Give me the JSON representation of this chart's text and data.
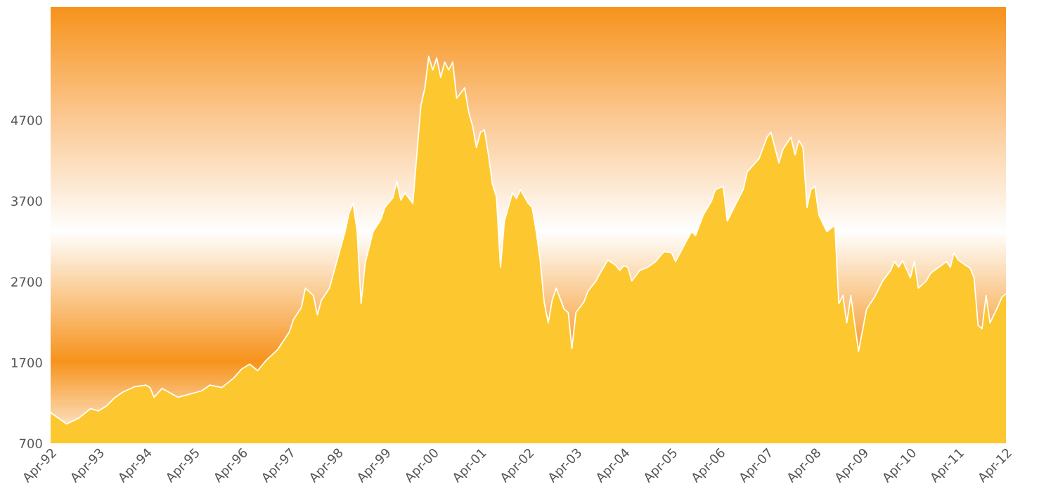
{
  "chart_data": {
    "type": "area",
    "grid": false,
    "legend": false,
    "xlim": [
      "1992-04",
      "2012-04"
    ],
    "xticks": [
      {
        "value": "1992-04",
        "label": "Apr-92"
      },
      {
        "value": "1993-04",
        "label": "Apr-93"
      },
      {
        "value": "1994-04",
        "label": "Apr-94"
      },
      {
        "value": "1995-04",
        "label": "Apr-95"
      },
      {
        "value": "1996-04",
        "label": "Apr-96"
      },
      {
        "value": "1997-04",
        "label": "Apr-97"
      },
      {
        "value": "1998-04",
        "label": "Apr-98"
      },
      {
        "value": "1999-04",
        "label": "Apr-99"
      },
      {
        "value": "2000-04",
        "label": "Apr-00"
      },
      {
        "value": "2001-04",
        "label": "Apr-01"
      },
      {
        "value": "2002-04",
        "label": "Apr-02"
      },
      {
        "value": "2003-04",
        "label": "Apr-03"
      },
      {
        "value": "2004-04",
        "label": "Apr-04"
      },
      {
        "value": "2005-04",
        "label": "Apr-05"
      },
      {
        "value": "2006-04",
        "label": "Apr-06"
      },
      {
        "value": "2007-04",
        "label": "Apr-07"
      },
      {
        "value": "2008-04",
        "label": "Apr-08"
      },
      {
        "value": "2009-04",
        "label": "Apr-09"
      },
      {
        "value": "2010-04",
        "label": "Apr-10"
      },
      {
        "value": "2011-04",
        "label": "Apr-11"
      },
      {
        "value": "2012-04",
        "label": "Apr-12"
      }
    ],
    "ylim": [
      700,
      6100
    ],
    "yticks": [
      700,
      1700,
      2700,
      3700,
      4700
    ],
    "x": [
      "1992-04",
      "1992-06",
      "1992-08",
      "1992-11",
      "1993-02",
      "1993-04",
      "1993-06",
      "1993-08",
      "1993-10",
      "1994-01",
      "1994-04",
      "1994-05",
      "1994-06",
      "1994-08",
      "1994-12",
      "1995-06",
      "1995-08",
      "1995-11",
      "1996-02",
      "1996-04",
      "1996-06",
      "1996-08",
      "1996-10",
      "1997-01",
      "1997-04",
      "1997-05",
      "1997-07",
      "1997-08",
      "1997-10",
      "1997-11",
      "1997-12",
      "1998-02",
      "1998-04",
      "1998-06",
      "1998-07",
      "1998-08",
      "1998-09",
      "1998-10",
      "1998-11",
      "1999-01",
      "1999-03",
      "1999-04",
      "1999-06",
      "1999-07",
      "1999-08",
      "1999-09",
      "1999-11",
      "1999-12",
      "2000-01",
      "2000-02",
      "2000-03",
      "2000-04",
      "2000-05",
      "2000-06",
      "2000-07",
      "2000-08",
      "2000-09",
      "2000-10",
      "2000-12",
      "2001-01",
      "2001-02",
      "2001-03",
      "2001-04",
      "2001-05",
      "2001-06",
      "2001-07",
      "2001-08",
      "2001-09",
      "2001-10",
      "2001-12",
      "2002-01",
      "2002-02",
      "2002-04",
      "2002-05",
      "2002-06",
      "2002-07",
      "2002-08",
      "2002-09",
      "2002-10",
      "2002-11",
      "2003-01",
      "2003-02",
      "2003-03",
      "2003-04",
      "2003-06",
      "2003-07",
      "2003-09",
      "2003-10",
      "2003-12",
      "2004-02",
      "2004-03",
      "2004-04",
      "2004-05",
      "2004-06",
      "2004-08",
      "2004-10",
      "2004-12",
      "2005-02",
      "2005-04",
      "2005-05",
      "2005-08",
      "2005-09",
      "2005-10",
      "2005-12",
      "2006-02",
      "2006-03",
      "2006-05",
      "2006-06",
      "2006-08",
      "2006-10",
      "2006-11",
      "2007-01",
      "2007-02",
      "2007-04",
      "2007-05",
      "2007-07",
      "2007-08",
      "2007-10",
      "2007-11",
      "2007-12",
      "2008-01",
      "2008-02",
      "2008-03",
      "2008-04",
      "2008-05",
      "2008-07",
      "2008-09",
      "2008-10",
      "2008-11",
      "2008-12",
      "2009-01",
      "2009-02",
      "2009-03",
      "2009-05",
      "2009-07",
      "2009-09",
      "2009-11",
      "2009-12",
      "2010-01",
      "2010-02",
      "2010-04",
      "2010-05",
      "2010-06",
      "2010-08",
      "2010-09",
      "2010-10",
      "2010-12",
      "2011-01",
      "2011-02",
      "2011-03",
      "2011-04",
      "2011-06",
      "2011-07",
      "2011-08",
      "2011-09",
      "2011-10",
      "2011-11",
      "2011-12",
      "2012-02",
      "2012-03",
      "2012-04"
    ],
    "series": [
      {
        "color": "#fdc82f",
        "values": [
          1080,
          1010,
          940,
          1010,
          1130,
          1100,
          1160,
          1260,
          1330,
          1400,
          1420,
          1390,
          1270,
          1380,
          1270,
          1350,
          1420,
          1390,
          1510,
          1620,
          1680,
          1600,
          1720,
          1860,
          2080,
          2230,
          2380,
          2620,
          2530,
          2290,
          2470,
          2620,
          2970,
          3320,
          3550,
          3670,
          3320,
          2430,
          2930,
          3320,
          3470,
          3620,
          3740,
          3940,
          3710,
          3800,
          3670,
          4270,
          4880,
          5100,
          5490,
          5320,
          5470,
          5230,
          5420,
          5320,
          5420,
          4970,
          5100,
          4800,
          4620,
          4360,
          4550,
          4580,
          4270,
          3910,
          3750,
          2880,
          3450,
          3800,
          3730,
          3840,
          3670,
          3620,
          3320,
          2970,
          2450,
          2190,
          2470,
          2620,
          2360,
          2320,
          1870,
          2320,
          2450,
          2580,
          2710,
          2800,
          2970,
          2900,
          2840,
          2900,
          2880,
          2710,
          2840,
          2880,
          2950,
          3070,
          3060,
          2950,
          3230,
          3320,
          3270,
          3530,
          3700,
          3840,
          3880,
          3450,
          3650,
          3840,
          4060,
          4170,
          4230,
          4490,
          4550,
          4170,
          4340,
          4490,
          4270,
          4450,
          4360,
          3620,
          3840,
          3880,
          3530,
          3320,
          3400,
          2430,
          2530,
          2190,
          2530,
          2160,
          1840,
          2360,
          2510,
          2710,
          2840,
          2950,
          2880,
          2960,
          2750,
          2950,
          2620,
          2710,
          2800,
          2840,
          2910,
          2950,
          2880,
          3060,
          2970,
          2900,
          2870,
          2750,
          2160,
          2120,
          2530,
          2190,
          2400,
          2510,
          2550
        ]
      }
    ]
  }
}
